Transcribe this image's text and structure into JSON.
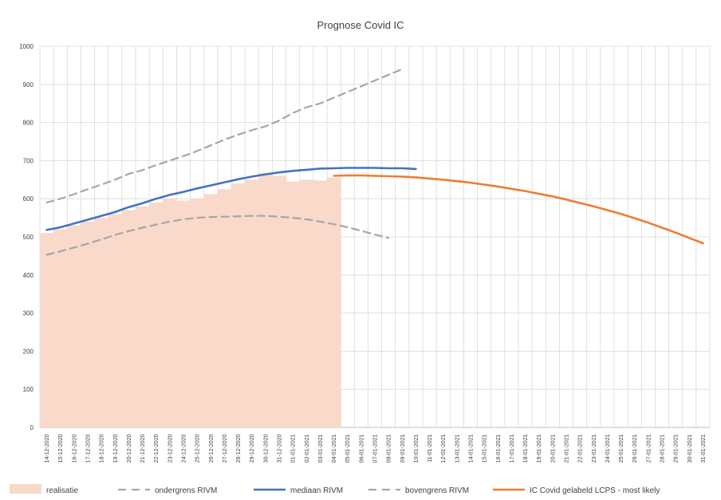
{
  "chart_data": {
    "type": "line",
    "title": "Prognose Covid IC",
    "xlabel": "",
    "ylabel": "",
    "ylim": [
      0,
      1000
    ],
    "yticks": [
      0,
      100,
      200,
      300,
      400,
      500,
      600,
      700,
      800,
      900,
      1000
    ],
    "grid": true,
    "legend_position": "bottom",
    "categories": [
      "14-12-2020",
      "15-12-2020",
      "16-12-2020",
      "17-12-2020",
      "18-12-2020",
      "19-12-2020",
      "20-12-2020",
      "21-12-2020",
      "22-12-2020",
      "23-12-2020",
      "24-12-2020",
      "25-12-2020",
      "26-12-2020",
      "27-12-2020",
      "28-12-2020",
      "29-12-2020",
      "30-12-2020",
      "31-12-2020",
      "01-01-2021",
      "02-01-2021",
      "03-01-2021",
      "04-01-2021",
      "05-01-2021",
      "06-01-2021",
      "07-01-2021",
      "08-01-2021",
      "09-01-2021",
      "10-01-2021",
      "11-01-2021",
      "12-01-2021",
      "13-01-2021",
      "14-01-2021",
      "15-01-2021",
      "16-01-2021",
      "17-01-2021",
      "18-01-2021",
      "19-01-2021",
      "20-01-2021",
      "21-01-2021",
      "22-01-2021",
      "23-01-2021",
      "24-01-2021",
      "25-01-2021",
      "26-01-2021",
      "27-01-2021",
      "28-01-2021",
      "29-01-2021",
      "30-01-2021",
      "31-01-2021"
    ],
    "series": [
      {
        "name": "realisatie",
        "kind": "area",
        "color": "#F8D9CA",
        "values": [
          510,
          520,
          530,
          540,
          550,
          560,
          570,
          580,
          590,
          600,
          595,
          600,
          612,
          625,
          640,
          650,
          668,
          660,
          645,
          650,
          648,
          655,
          null,
          null,
          null,
          null,
          null,
          null,
          null,
          null,
          null,
          null,
          null,
          null,
          null,
          null,
          null,
          null,
          null,
          null,
          null,
          null,
          null,
          null,
          null,
          null,
          null,
          null,
          null
        ]
      },
      {
        "name": "ondergrens RIVM",
        "kind": "dashed",
        "color": "#A6A6A6",
        "values": [
          590,
          600,
          612,
          625,
          637,
          650,
          665,
          675,
          688,
          700,
          712,
          725,
          740,
          755,
          768,
          780,
          790,
          805,
          825,
          840,
          850,
          865,
          880,
          895,
          910,
          925,
          940,
          null,
          null,
          null,
          null,
          null,
          null,
          null,
          null,
          null,
          null,
          null,
          null,
          null,
          null,
          null,
          null,
          null,
          null,
          null,
          null,
          null,
          null
        ]
      },
      {
        "name": "mediaan RIVM",
        "kind": "line",
        "color": "#4472C4",
        "values": [
          518,
          525,
          535,
          545,
          555,
          565,
          578,
          588,
          600,
          610,
          618,
          627,
          635,
          643,
          651,
          658,
          664,
          669,
          673,
          676,
          679,
          680,
          681,
          681,
          681,
          680,
          680,
          678,
          null,
          null,
          null,
          null,
          null,
          null,
          null,
          null,
          null,
          null,
          null,
          null,
          null,
          null,
          null,
          null,
          null,
          null,
          null,
          null,
          null
        ]
      },
      {
        "name": "bovengrens RIVM",
        "kind": "dashed",
        "color": "#A6A6A6",
        "values": [
          453,
          462,
          472,
          482,
          493,
          505,
          515,
          524,
          532,
          540,
          546,
          550,
          552,
          553,
          554,
          555,
          555,
          553,
          550,
          546,
          540,
          533,
          525,
          516,
          506,
          497,
          null,
          null,
          null,
          null,
          null,
          null,
          null,
          null,
          null,
          null,
          null,
          null,
          null,
          null,
          null,
          null,
          null,
          null,
          null,
          null,
          null,
          null,
          null
        ]
      },
      {
        "name": "IC Covid gelabeld LCPS - most likely",
        "kind": "line",
        "color": "#ED7D31",
        "values": [
          null,
          null,
          null,
          null,
          null,
          null,
          null,
          null,
          null,
          null,
          null,
          null,
          null,
          null,
          null,
          null,
          null,
          null,
          null,
          null,
          null,
          660,
          661,
          661,
          660,
          659,
          658,
          656,
          653,
          650,
          646,
          642,
          637,
          632,
          626,
          620,
          613,
          606,
          598,
          589,
          580,
          570,
          560,
          549,
          537,
          524,
          511,
          497,
          483
        ]
      }
    ]
  }
}
